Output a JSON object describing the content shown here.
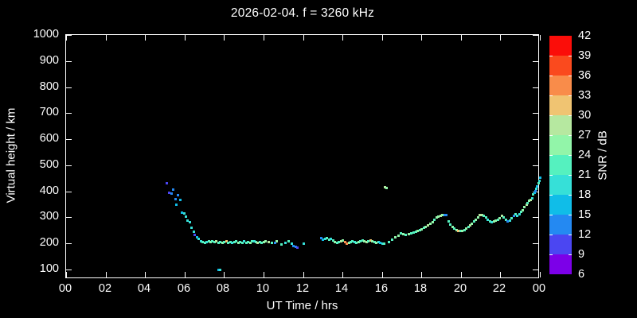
{
  "title": "2026-02-04. f = 3260 kHz",
  "style": {
    "background": "#000000",
    "foreground": "#FFFFFF"
  },
  "x_axis": {
    "label": "UT Time / hrs",
    "tick_labels": [
      "00",
      "02",
      "04",
      "06",
      "08",
      "10",
      "12",
      "14",
      "16",
      "18",
      "20",
      "22",
      "00"
    ],
    "range_hours": [
      0,
      24
    ]
  },
  "y_axis": {
    "label": "Virtual height / km",
    "tick_labels": [
      "100",
      "200",
      "300",
      "400",
      "500",
      "600",
      "700",
      "800",
      "900",
      "1000"
    ],
    "range_km": [
      100,
      1000
    ]
  },
  "colorbar": {
    "label": "SNR / dB",
    "tick_labels": [
      "42",
      "39",
      "36",
      "33",
      "30",
      "27",
      "24",
      "21",
      "18",
      "15",
      "12",
      "9",
      "6"
    ],
    "levels": [
      6,
      9,
      12,
      15,
      18,
      21,
      24,
      27,
      30,
      33,
      36,
      39,
      42
    ],
    "colors": [
      "#7C00E8",
      "#4B46F2",
      "#2489F2",
      "#10BDE8",
      "#36E0D8",
      "#55F1BF",
      "#92F5A9",
      "#B6E8A0",
      "#F0C472",
      "#F98C4A",
      "#FA4A1E",
      "#FB0D09"
    ]
  },
  "chart_data": {
    "type": "scatter",
    "title": "2026-02-04. f = 3260 kHz",
    "xlabel": "UT Time / hrs",
    "ylabel": "Virtual height / km",
    "color_label": "SNR / dB",
    "xlim": [
      0,
      24
    ],
    "ylim": [
      100,
      1000
    ],
    "clim": [
      6,
      42
    ],
    "grid": false,
    "point_format": "[ut_hours, virtual_height_km, snr_db]",
    "points": [
      [
        5.08,
        432,
        9
      ],
      [
        5.2,
        395,
        9
      ],
      [
        5.32,
        392,
        12
      ],
      [
        5.4,
        407,
        12
      ],
      [
        5.53,
        373,
        12
      ],
      [
        5.57,
        349,
        15
      ],
      [
        5.65,
        386,
        12
      ],
      [
        5.77,
        367,
        15
      ],
      [
        5.85,
        321,
        15
      ],
      [
        5.97,
        318,
        18
      ],
      [
        6.05,
        303,
        18
      ],
      [
        6.13,
        290,
        18
      ],
      [
        6.25,
        284,
        18
      ],
      [
        6.33,
        263,
        18
      ],
      [
        6.45,
        247,
        18
      ],
      [
        6.5,
        235,
        9
      ],
      [
        6.61,
        226,
        15
      ],
      [
        6.7,
        220,
        18
      ],
      [
        6.82,
        211,
        18
      ],
      [
        6.9,
        207,
        21
      ],
      [
        7.0,
        204,
        21
      ],
      [
        7.1,
        207,
        18
      ],
      [
        7.2,
        211,
        21
      ],
      [
        7.3,
        207,
        24
      ],
      [
        7.4,
        211,
        21
      ],
      [
        7.5,
        207,
        21
      ],
      [
        7.6,
        209,
        27
      ],
      [
        7.7,
        204,
        21
      ],
      [
        7.8,
        207,
        21
      ],
      [
        7.9,
        204,
        24
      ],
      [
        8.0,
        207,
        21
      ],
      [
        8.1,
        209,
        30
      ],
      [
        8.2,
        204,
        21
      ],
      [
        8.3,
        207,
        21
      ],
      [
        8.4,
        204,
        18
      ],
      [
        8.5,
        207,
        21
      ],
      [
        8.6,
        209,
        21
      ],
      [
        8.7,
        204,
        24
      ],
      [
        8.8,
        207,
        21
      ],
      [
        8.9,
        204,
        21
      ],
      [
        9.0,
        209,
        18
      ],
      [
        9.1,
        204,
        21
      ],
      [
        9.2,
        207,
        21
      ],
      [
        9.3,
        204,
        24
      ],
      [
        9.4,
        209,
        21
      ],
      [
        9.5,
        211,
        18
      ],
      [
        9.6,
        207,
        21
      ],
      [
        9.7,
        204,
        27
      ],
      [
        9.8,
        207,
        21
      ],
      [
        9.9,
        204,
        21
      ],
      [
        10.0,
        207,
        24
      ],
      [
        10.1,
        211,
        24
      ],
      [
        10.25,
        207,
        27
      ],
      [
        10.4,
        204,
        21
      ],
      [
        10.55,
        204,
        12
      ],
      [
        10.65,
        211,
        24
      ],
      [
        7.72,
        100,
        15
      ],
      [
        7.8,
        100,
        18
      ],
      [
        10.9,
        198,
        21
      ],
      [
        11.1,
        204,
        18
      ],
      [
        11.25,
        211,
        21
      ],
      [
        11.4,
        201,
        18
      ],
      [
        11.5,
        192,
        12
      ],
      [
        11.6,
        189,
        12
      ],
      [
        11.7,
        186,
        9
      ],
      [
        12.0,
        201,
        18
      ],
      [
        12.9,
        223,
        12
      ],
      [
        13.0,
        217,
        15
      ],
      [
        13.1,
        220,
        18
      ],
      [
        13.2,
        223,
        21
      ],
      [
        13.3,
        217,
        21
      ],
      [
        13.4,
        220,
        18
      ],
      [
        13.5,
        214,
        21
      ],
      [
        13.6,
        207,
        24
      ],
      [
        13.7,
        204,
        21
      ],
      [
        13.8,
        207,
        21
      ],
      [
        13.9,
        211,
        27
      ],
      [
        14.0,
        214,
        24
      ],
      [
        14.1,
        207,
        33
      ],
      [
        14.2,
        201,
        33
      ],
      [
        14.3,
        204,
        24
      ],
      [
        14.4,
        207,
        21
      ],
      [
        14.5,
        211,
        21
      ],
      [
        14.6,
        207,
        18
      ],
      [
        14.7,
        204,
        21
      ],
      [
        14.8,
        207,
        24
      ],
      [
        14.9,
        211,
        21
      ],
      [
        15.0,
        214,
        21
      ],
      [
        15.1,
        211,
        24
      ],
      [
        15.2,
        207,
        27
      ],
      [
        15.3,
        211,
        21
      ],
      [
        15.4,
        214,
        30
      ],
      [
        15.5,
        211,
        24
      ],
      [
        15.6,
        207,
        21
      ],
      [
        15.7,
        204,
        24
      ],
      [
        15.8,
        207,
        18
      ],
      [
        15.9,
        204,
        15
      ],
      [
        16.0,
        201,
        18
      ],
      [
        16.1,
        201,
        21
      ],
      [
        16.15,
        418,
        27
      ],
      [
        16.22,
        414,
        24
      ],
      [
        16.35,
        207,
        21
      ],
      [
        16.5,
        217,
        21
      ],
      [
        16.65,
        226,
        24
      ],
      [
        16.8,
        232,
        24
      ],
      [
        16.95,
        241,
        21
      ],
      [
        17.05,
        238,
        24
      ],
      [
        17.2,
        235,
        21
      ],
      [
        17.35,
        238,
        24
      ],
      [
        17.45,
        241,
        21
      ],
      [
        17.6,
        243,
        21
      ],
      [
        17.7,
        246,
        21
      ],
      [
        17.8,
        249,
        24
      ],
      [
        17.9,
        254,
        21
      ],
      [
        18.0,
        257,
        24
      ],
      [
        18.1,
        263,
        21
      ],
      [
        18.2,
        266,
        24
      ],
      [
        18.3,
        272,
        27
      ],
      [
        18.45,
        278,
        24
      ],
      [
        18.55,
        284,
        24
      ],
      [
        18.65,
        293,
        21
      ],
      [
        18.75,
        300,
        24
      ],
      [
        18.85,
        303,
        24
      ],
      [
        18.95,
        306,
        27
      ],
      [
        19.05,
        309,
        24
      ],
      [
        19.15,
        312,
        12
      ],
      [
        19.25,
        309,
        12
      ],
      [
        19.35,
        287,
        21
      ],
      [
        19.45,
        275,
        21
      ],
      [
        19.55,
        266,
        24
      ],
      [
        19.65,
        260,
        21
      ],
      [
        19.75,
        254,
        24
      ],
      [
        19.85,
        251,
        30
      ],
      [
        19.95,
        248,
        21
      ],
      [
        20.05,
        251,
        24
      ],
      [
        20.15,
        254,
        21
      ],
      [
        20.25,
        260,
        24
      ],
      [
        20.35,
        266,
        21
      ],
      [
        20.45,
        272,
        27
      ],
      [
        20.55,
        278,
        24
      ],
      [
        20.65,
        287,
        21
      ],
      [
        20.75,
        293,
        24
      ],
      [
        20.85,
        300,
        24
      ],
      [
        20.95,
        309,
        27
      ],
      [
        21.05,
        312,
        27
      ],
      [
        21.15,
        306,
        21
      ],
      [
        21.25,
        300,
        21
      ],
      [
        21.35,
        293,
        18
      ],
      [
        21.45,
        287,
        21
      ],
      [
        21.55,
        284,
        18
      ],
      [
        21.65,
        287,
        24
      ],
      [
        21.75,
        290,
        24
      ],
      [
        21.85,
        293,
        21
      ],
      [
        21.95,
        297,
        24
      ],
      [
        22.05,
        306,
        27
      ],
      [
        22.15,
        300,
        21
      ],
      [
        22.25,
        293,
        21
      ],
      [
        22.35,
        287,
        12
      ],
      [
        22.45,
        290,
        18
      ],
      [
        22.55,
        297,
        21
      ],
      [
        22.65,
        306,
        12
      ],
      [
        22.75,
        315,
        21
      ],
      [
        22.85,
        306,
        18
      ],
      [
        22.95,
        315,
        18
      ],
      [
        23.05,
        324,
        21
      ],
      [
        23.1,
        330,
        24
      ],
      [
        23.2,
        340,
        24
      ],
      [
        23.3,
        349,
        27
      ],
      [
        23.35,
        355,
        21
      ],
      [
        23.45,
        364,
        24
      ],
      [
        23.5,
        370,
        27
      ],
      [
        23.6,
        376,
        18
      ],
      [
        23.65,
        389,
        21
      ],
      [
        23.7,
        395,
        15
      ],
      [
        23.75,
        401,
        12
      ],
      [
        23.8,
        410,
        18
      ],
      [
        23.85,
        419,
        15
      ],
      [
        23.9,
        432,
        21
      ],
      [
        23.95,
        441,
        18
      ],
      [
        23.98,
        453,
        15
      ]
    ]
  }
}
